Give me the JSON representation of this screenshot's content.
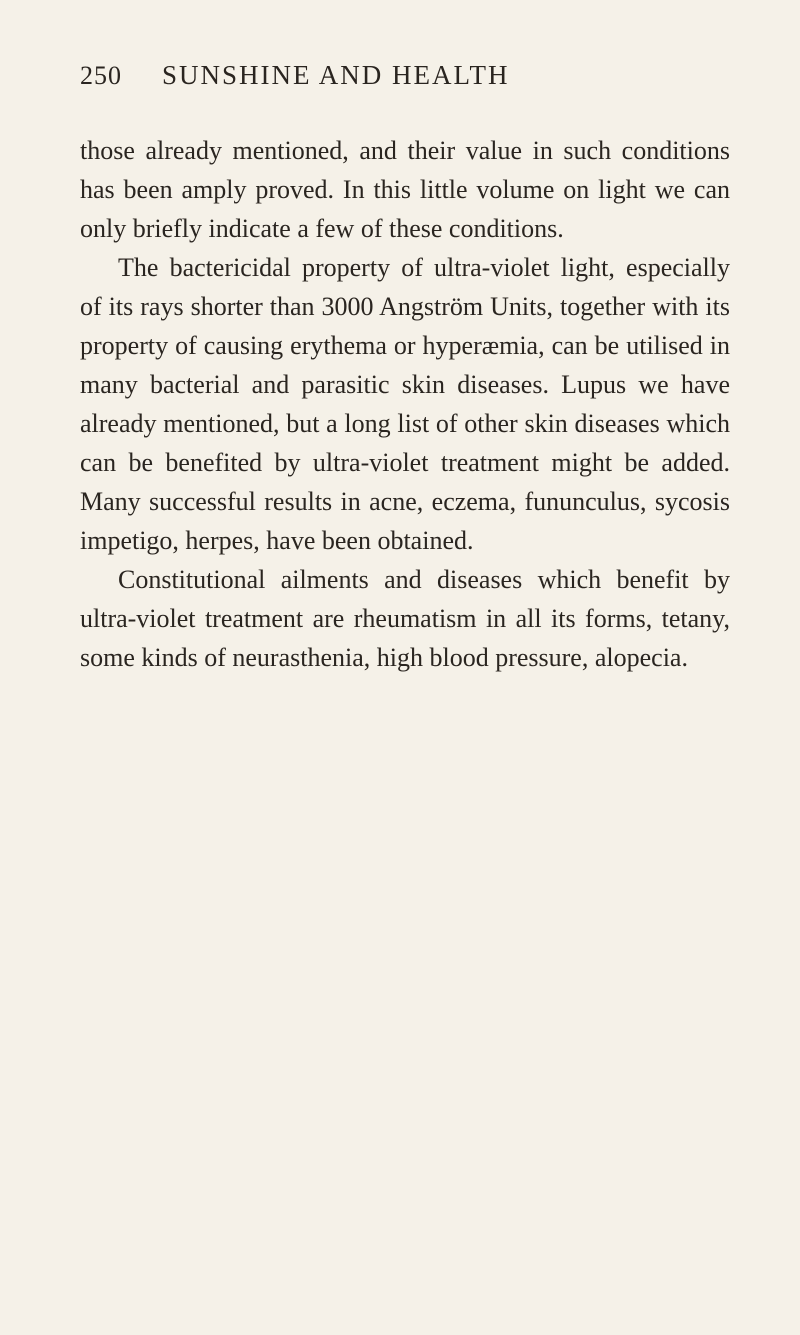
{
  "page": {
    "number": "250",
    "title": "SUNSHINE AND HEALTH"
  },
  "paragraphs": {
    "p1": "those already mentioned, and their value in such conditions has been amply proved. In this little volume on light we can only briefly indicate a few of these conditions.",
    "p2": "The bactericidal property of ultra-violet light, especially of its rays shorter than 3000 Angström Units, together with its property of causing erythema or hyperæmia, can be utilised in many bacterial and parasitic skin diseases. Lupus we have already men­tioned, but a long list of other skin diseases which can be benefited by ultra-violet treat­ment might be added. Many successful results in acne, eczema, fununculus, sycosis impetigo, herpes, have been obtained.",
    "p3": "Constitutional ailments and diseases which benefit by ultra-violet treatment are rheuma­tism in all its forms, tetany, some kinds of neurasthenia, high blood pressure, alopecia."
  },
  "colors": {
    "background": "#f5f1e8",
    "text": "#2a2520"
  },
  "typography": {
    "body_fontsize": 26,
    "header_fontsize": 27,
    "line_height": 1.5
  }
}
